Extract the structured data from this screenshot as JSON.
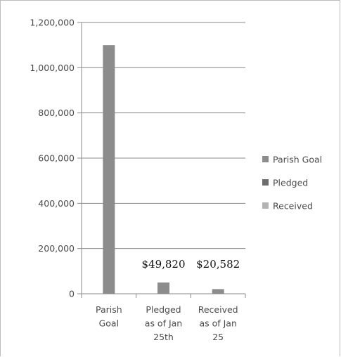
{
  "chart_data": {
    "type": "bar",
    "categories": [
      [
        "Parish",
        "Goal"
      ],
      [
        "Pledged",
        "as of Jan",
        "25th"
      ],
      [
        "Received",
        "as of Jan",
        "25"
      ]
    ],
    "values": [
      1100000,
      49820,
      20582
    ],
    "data_labels": [
      "",
      "$49,820",
      "$20,582"
    ],
    "ylim": [
      0,
      1200000
    ],
    "yticks": [
      0,
      200000,
      400000,
      600000,
      800000,
      1000000,
      1200000
    ],
    "ytick_labels": [
      "0",
      "200,000",
      "400,000",
      "600,000",
      "800,000",
      "1,000,000",
      "1,200,000"
    ],
    "grid": true,
    "legend": {
      "placement": "right",
      "entries": [
        {
          "name": "Parish Goal",
          "color": "#8c8c8c"
        },
        {
          "name": "Pledged",
          "color": "#6e6e6e"
        },
        {
          "name": "Received",
          "color": "#b4b4b4"
        }
      ]
    },
    "bar_color": "#8c8c8c"
  }
}
